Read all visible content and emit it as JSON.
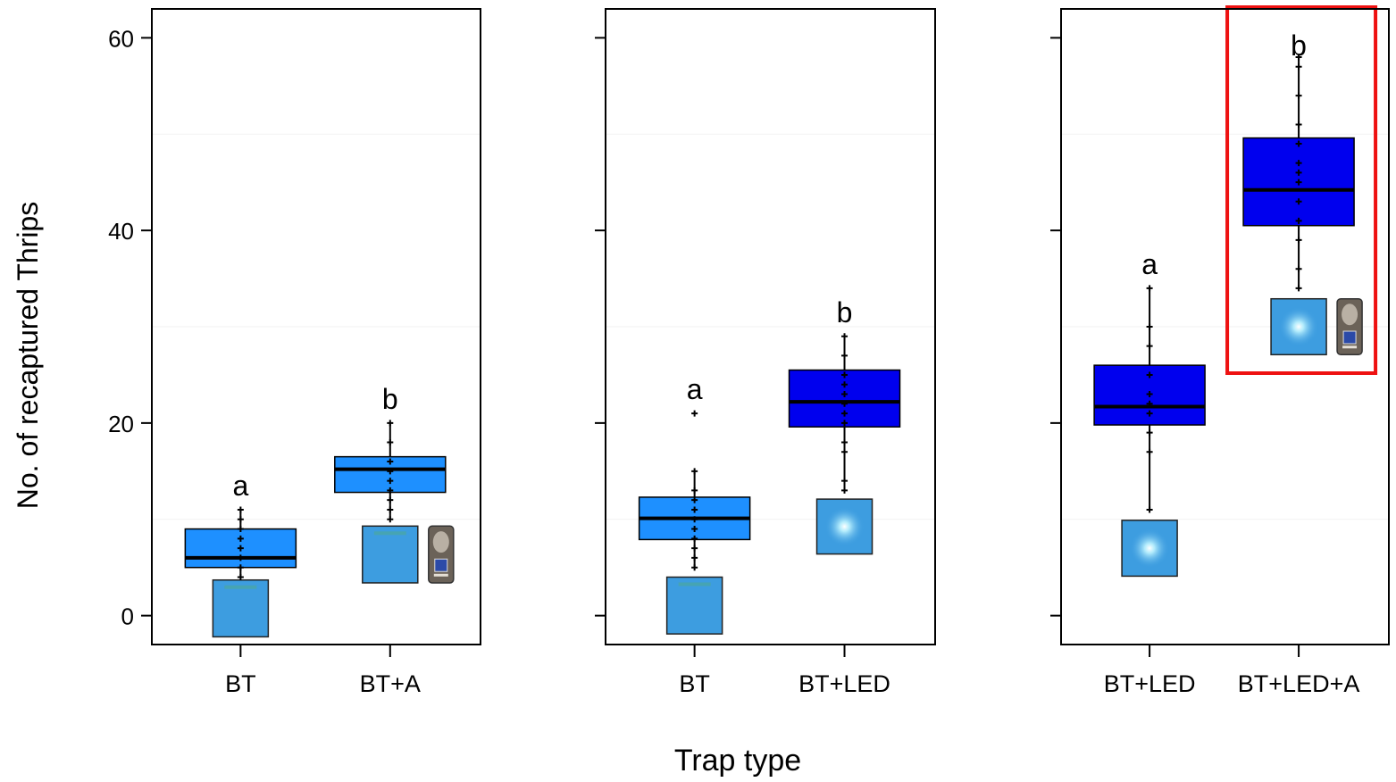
{
  "chart_data": {
    "type": "box",
    "ylabel": "No. of recaptured Thrips",
    "xlabel": "Trap type",
    "ylim": [
      -3,
      63
    ],
    "yticks": [
      0,
      20,
      40,
      60
    ],
    "gridlines": [
      10,
      30,
      50
    ],
    "colors": {
      "light_box": "#1e90ff",
      "dark_box": "#0000ee",
      "highlight": "#ee1111",
      "trap_card": "#3d9de0"
    },
    "panels": [
      {
        "categories": [
          "BT",
          "BT+A"
        ],
        "boxes": [
          {
            "label": "BT",
            "letter": "a",
            "color": "light",
            "q1": 5,
            "median": 6,
            "q3": 9,
            "min": 4,
            "max": 11,
            "points": [
              4,
              5,
              6,
              7,
              8,
              9,
              10,
              11
            ],
            "icon": "trap-card",
            "card_y": [
              -2.2,
              3.7
            ],
            "sensor": false,
            "led": false
          },
          {
            "label": "BT+A",
            "letter": "b",
            "color": "light",
            "q1": 12.8,
            "median": 15.2,
            "q3": 16.5,
            "min": 10,
            "max": 20,
            "points": [
              10,
              11,
              12,
              13,
              14,
              15,
              16,
              18,
              20
            ],
            "icon": "trap-card-attractant",
            "card_y": [
              3.4,
              9.3
            ],
            "sensor": true,
            "led": false
          }
        ]
      },
      {
        "categories": [
          "BT",
          "BT+LED"
        ],
        "boxes": [
          {
            "label": "BT",
            "letter": "a",
            "color": "light",
            "q1": 7.9,
            "median": 10.1,
            "q3": 12.3,
            "min": 5,
            "max": 15,
            "outliers": [
              21
            ],
            "points": [
              5,
              6,
              7,
              8,
              9,
              10,
              11,
              12,
              13,
              15
            ],
            "icon": "trap-card",
            "card_y": [
              -1.9,
              4.0
            ],
            "sensor": false,
            "led": false
          },
          {
            "label": "BT+LED",
            "letter": "b",
            "color": "dark",
            "q1": 19.6,
            "median": 22.2,
            "q3": 25.5,
            "min": 13,
            "max": 29,
            "points": [
              13,
              14,
              17,
              18,
              20,
              21,
              22,
              23,
              24,
              25,
              27,
              29
            ],
            "icon": "trap-card-led",
            "card_y": [
              6.4,
              12.1
            ],
            "sensor": false,
            "led": true
          }
        ]
      },
      {
        "categories": [
          "BT+LED",
          "BT+LED+A"
        ],
        "boxes": [
          {
            "label": "BT+LED",
            "letter": "a",
            "color": "dark",
            "q1": 19.8,
            "median": 21.7,
            "q3": 26.0,
            "min": 11,
            "max": 34,
            "points": [
              11,
              17,
              19,
              21,
              22,
              23,
              25,
              28,
              30,
              34
            ],
            "icon": "trap-card-led",
            "card_y": [
              4.1,
              9.9
            ],
            "sensor": false,
            "led": true
          },
          {
            "label": "BT+LED+A",
            "letter": "b",
            "color": "dark",
            "q1": 40.5,
            "median": 44.2,
            "q3": 49.6,
            "min": 34,
            "max": 58,
            "points": [
              34,
              36,
              39,
              41,
              43,
              45,
              46,
              47,
              49,
              51,
              54,
              57,
              58
            ],
            "icon": "trap-card-led-attractant",
            "card_y": [
              27.1,
              32.9
            ],
            "sensor": true,
            "led": true,
            "highlighted": true
          }
        ]
      }
    ]
  }
}
